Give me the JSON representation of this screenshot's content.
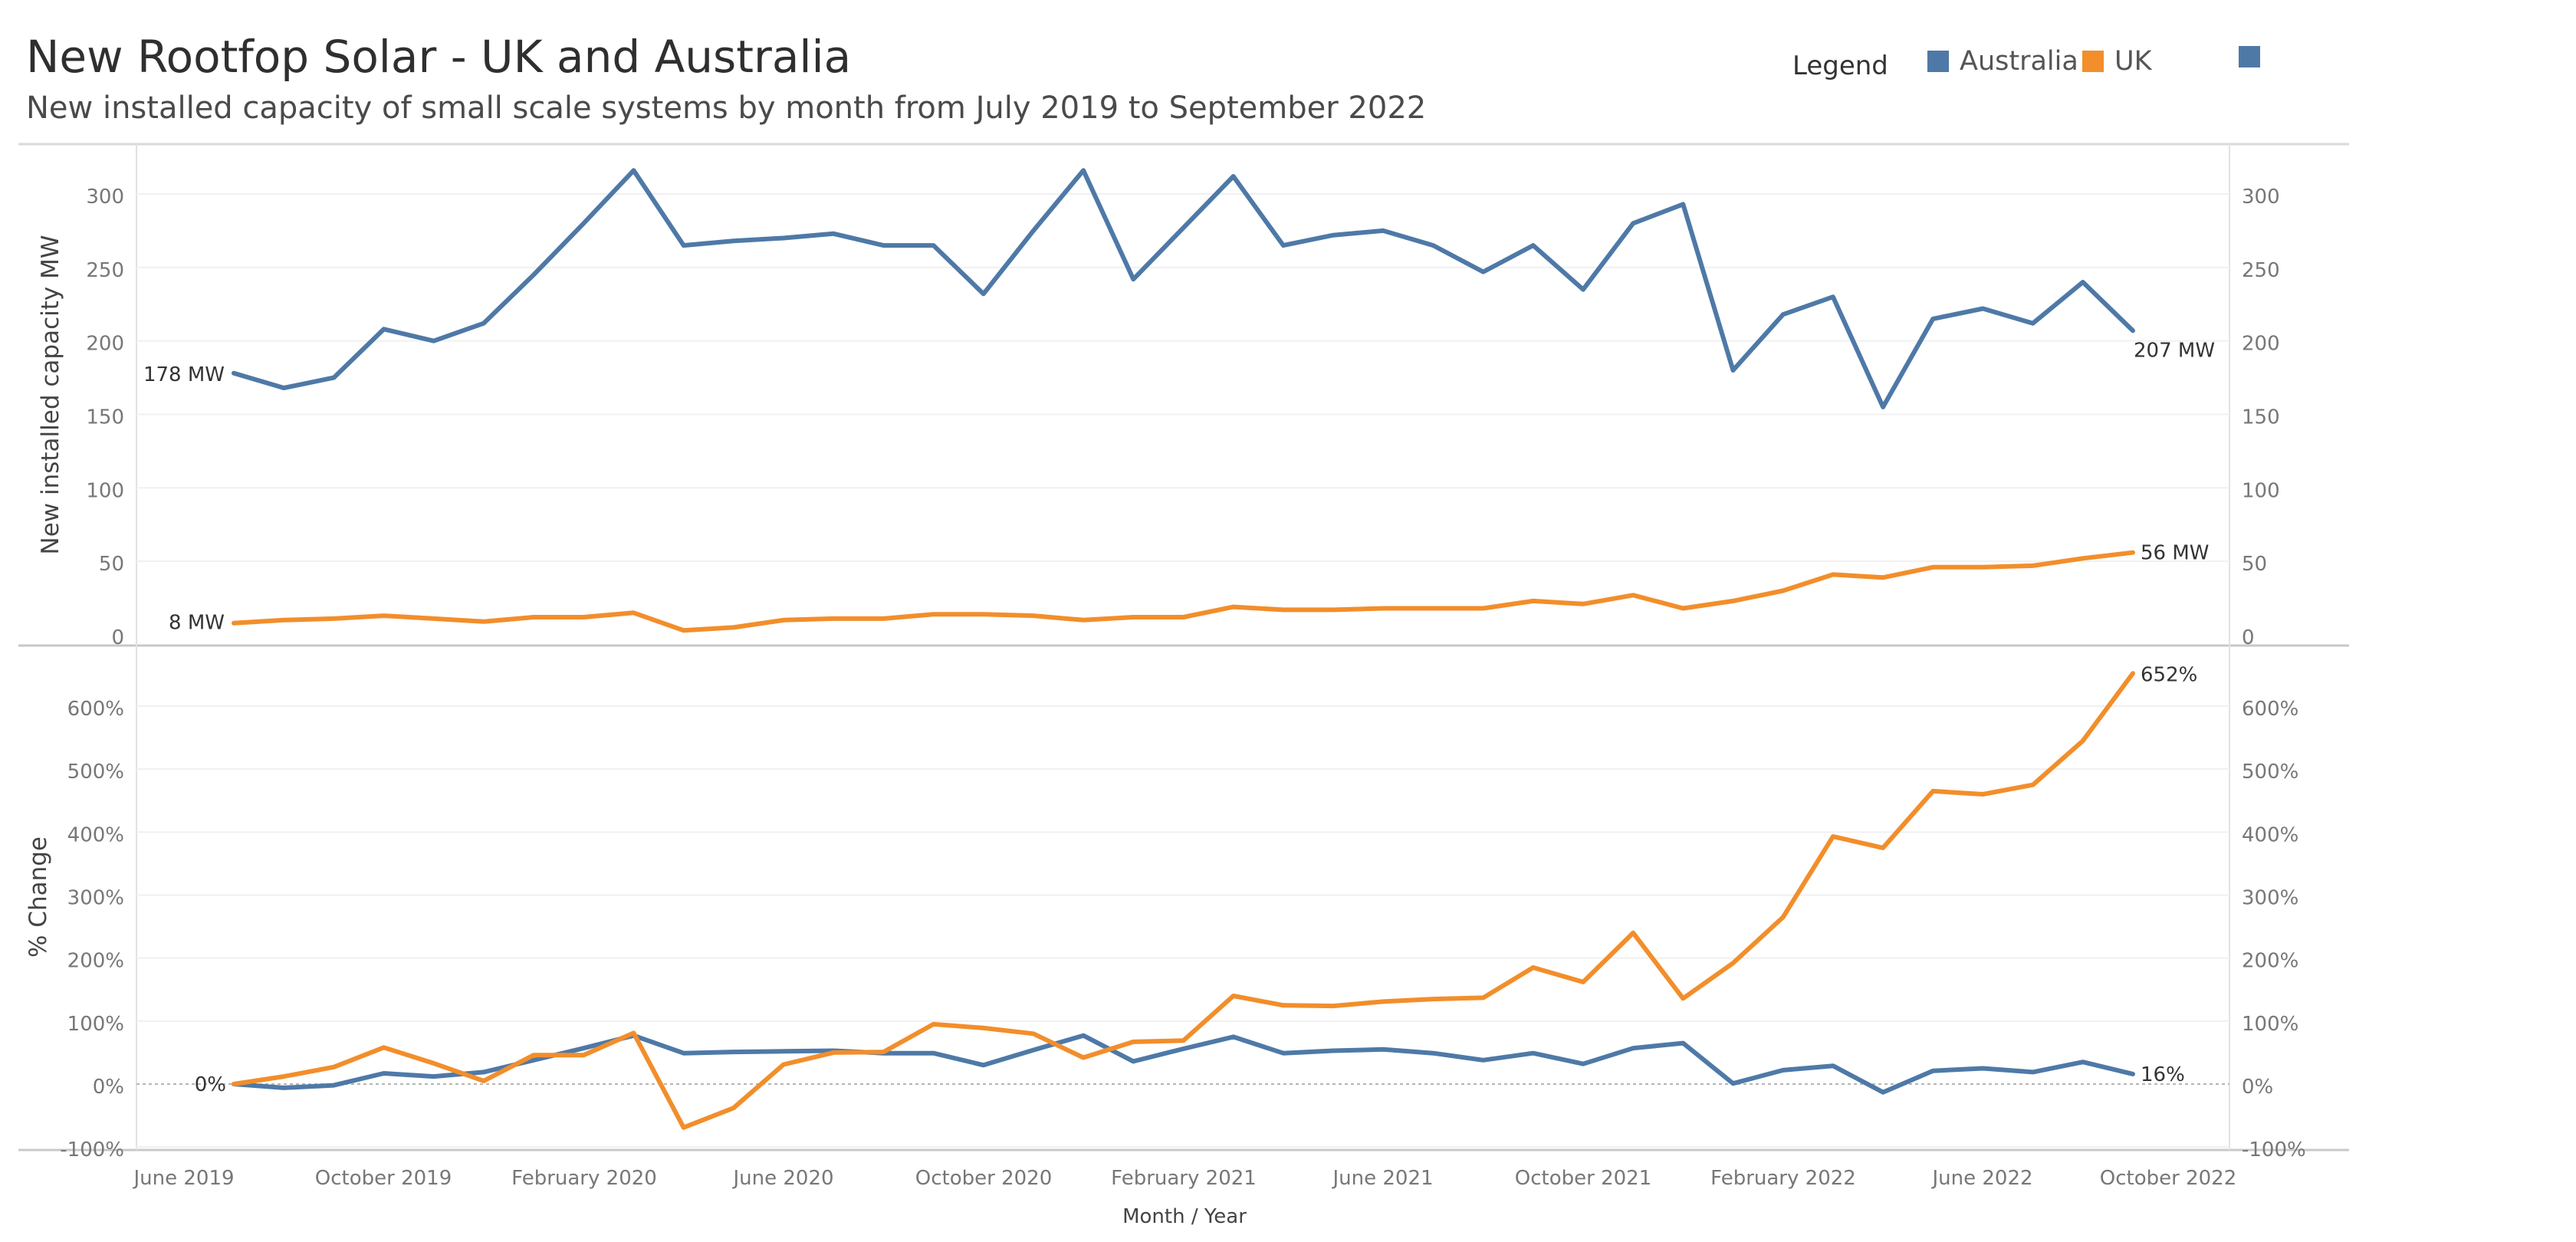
{
  "header": {
    "title": "New Rootfop Solar - UK and Australia",
    "subtitle": "New installed capacity of small scale systems by month from July 2019 to September 2022"
  },
  "legend": {
    "title": "Legend",
    "items": [
      {
        "label": "Australia",
        "color": "#4e79a7"
      },
      {
        "label": "UK",
        "color": "#f28e2b"
      },
      {
        "label": "",
        "color": "#4e79a7"
      }
    ]
  },
  "colors": {
    "australia": "#4e79a7",
    "uk": "#f28e2b"
  },
  "chart_data": [
    {
      "type": "line",
      "title": "",
      "ylabel": "New installed capacity MW",
      "xlabel": "",
      "ylim": [
        -5,
        330
      ],
      "yticks": [
        0,
        50,
        100,
        150,
        200,
        250,
        300
      ],
      "ytick_labels": [
        "0",
        "50",
        "100",
        "150",
        "200",
        "250",
        "300"
      ],
      "grid": true,
      "series": [
        {
          "name": "Australia",
          "values": [
            178,
            168,
            175,
            208,
            200,
            212,
            245,
            280,
            316,
            265,
            268,
            270,
            273,
            265,
            265,
            232,
            275,
            316,
            242,
            277,
            312,
            265,
            272,
            275,
            265,
            247,
            265,
            235,
            280,
            293,
            180,
            218,
            230,
            155,
            215,
            222,
            212,
            240,
            207
          ]
        },
        {
          "name": "UK",
          "values": [
            8,
            10,
            11,
            13,
            11,
            9,
            12,
            12,
            15,
            3,
            5,
            10,
            11,
            11,
            14,
            14,
            13,
            10,
            12,
            12,
            19,
            17,
            17,
            18,
            18,
            18,
            23,
            21,
            27,
            18,
            23,
            30,
            41,
            39,
            46,
            46,
            47,
            52,
            56
          ]
        }
      ],
      "annotations": {
        "start": [
          "178 MW",
          "8 MW"
        ],
        "end": [
          "207 MW",
          "56 MW"
        ]
      }
    },
    {
      "type": "line",
      "title": "",
      "ylabel": "% Change",
      "xlabel": "Month / Year",
      "ylim": [
        -110,
        690
      ],
      "yticks": [
        -100,
        0,
        100,
        200,
        300,
        400,
        500,
        600
      ],
      "ytick_labels": [
        "-100%",
        "0%",
        "100%",
        "200%",
        "300%",
        "400%",
        "500%",
        "600%"
      ],
      "xticks": [
        "June 2019",
        "October 2019",
        "February 2020",
        "June 2020",
        "October 2020",
        "February 2021",
        "June 2021",
        "October 2021",
        "February 2022",
        "June 2022",
        "October 2022"
      ],
      "x_start": "July 2019",
      "x_end": "September 2022",
      "grid": true,
      "series": [
        {
          "name": "Australia",
          "values": [
            0,
            -6,
            -2,
            17,
            12,
            19,
            38,
            57,
            77,
            49,
            51,
            52,
            53,
            49,
            49,
            30,
            54,
            77,
            36,
            56,
            75,
            49,
            53,
            55,
            49,
            38,
            49,
            32,
            57,
            65,
            1,
            22,
            29,
            -13,
            21,
            25,
            19,
            35,
            16
          ]
        },
        {
          "name": "UK",
          "values": [
            0,
            12,
            27,
            58,
            33,
            5,
            46,
            46,
            81,
            -69,
            -38,
            31,
            50,
            51,
            95,
            89,
            80,
            42,
            67,
            69,
            140,
            125,
            124,
            131,
            135,
            137,
            185,
            162,
            240,
            136,
            192,
            265,
            393,
            375,
            465,
            460,
            475,
            545,
            652
          ]
        }
      ],
      "annotations": {
        "start": [
          "0%"
        ],
        "end": [
          "16%",
          "652%"
        ]
      }
    }
  ]
}
